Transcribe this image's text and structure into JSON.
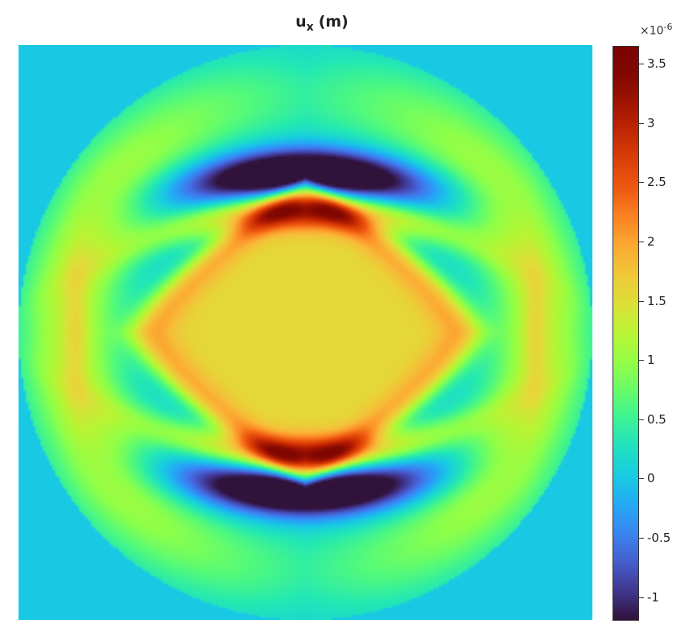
{
  "chart_data": {
    "type": "heatmap",
    "title": "u",
    "title_subscript": "x",
    "title_unit": "(m)",
    "colormap": "turbo",
    "colorbar": {
      "min": -1.2,
      "max": 3.65,
      "scale_label": "×10",
      "scale_exponent": "-6",
      "ticks": [
        -1,
        -0.5,
        0,
        0.5,
        1,
        1.5,
        2,
        2.5,
        3,
        3.5
      ],
      "tick_labels": [
        "-1",
        "-0.5",
        "0",
        "0.5",
        "1",
        "1.5",
        "2",
        "2.5",
        "3",
        "3.5"
      ]
    },
    "background_value": 0.0,
    "axes_visible": false,
    "grid": false
  }
}
